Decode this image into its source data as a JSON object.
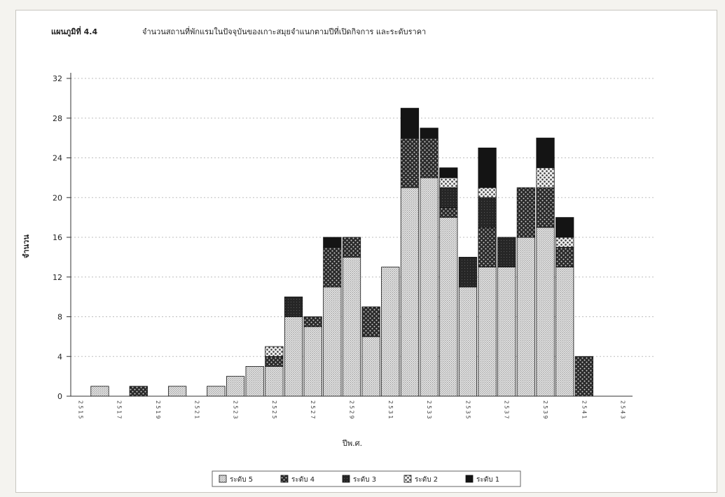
{
  "figure_label": "แผนภูมิที่ 4.4",
  "chart_data": {
    "type": "bar",
    "stacked": true,
    "title": "จำนวนสถานที่พักแรมในปัจจุบันของเกาะสมุยจำแนกตามปีที่เปิดกิจการ และระดับราคา",
    "xlabel": "ปีพ.ศ.",
    "ylabel": "จำนวน",
    "ylim": [
      0,
      32
    ],
    "yticks": [
      0,
      4,
      8,
      12,
      16,
      20,
      24,
      28,
      32
    ],
    "grid": true,
    "legend_position": "bottom",
    "categories": [
      "2515",
      "2516",
      "2517",
      "2518",
      "2519",
      "2520",
      "2521",
      "2522",
      "2523",
      "2524",
      "2525",
      "2526",
      "2527",
      "2528",
      "2529",
      "2530",
      "2531",
      "2532",
      "2533",
      "2534",
      "2535",
      "2536",
      "2537",
      "2538",
      "2539",
      "2540",
      "2541",
      "2542",
      "2543"
    ],
    "tick_labels": [
      "2515",
      "",
      "2517",
      "",
      "2519",
      "",
      "2521",
      "",
      "2523",
      "",
      "2525",
      "",
      "2527",
      "",
      "2529",
      "",
      "2531",
      "",
      "2533",
      "",
      "2535",
      "",
      "2537",
      "",
      "2539",
      "",
      "2541",
      "",
      "2543"
    ],
    "series": [
      {
        "name": "ระดับ 5",
        "color": "#d4d4d4",
        "values": [
          0,
          1,
          0,
          0,
          0,
          1,
          0,
          1,
          2,
          3,
          3,
          8,
          7,
          11,
          14,
          6,
          13,
          21,
          22,
          18,
          11,
          13,
          13,
          16,
          17,
          13,
          0,
          0,
          0
        ]
      },
      {
        "name": "ระดับ 4",
        "color": "#4a4a4a",
        "values": [
          0,
          0,
          0,
          1,
          0,
          0,
          0,
          0,
          0,
          0,
          1,
          0,
          1,
          4,
          2,
          3,
          0,
          5,
          4,
          1,
          0,
          4,
          0,
          5,
          4,
          2,
          4,
          0,
          0
        ]
      },
      {
        "name": "ระดับ 3",
        "color": "#2c2c2c",
        "values": [
          0,
          0,
          0,
          0,
          0,
          0,
          0,
          0,
          0,
          0,
          0,
          2,
          0,
          0,
          0,
          0,
          0,
          0,
          0,
          2,
          3,
          3,
          3,
          0,
          0,
          0,
          0,
          0,
          0
        ]
      },
      {
        "name": "ระดับ 2",
        "color": "#b8b8b8",
        "values": [
          0,
          0,
          0,
          0,
          0,
          0,
          0,
          0,
          0,
          0,
          1,
          0,
          0,
          0,
          0,
          0,
          0,
          0,
          0,
          1,
          0,
          1,
          0,
          0,
          2,
          1,
          0,
          0,
          0
        ]
      },
      {
        "name": "ระดับ 1",
        "color": "#161616",
        "values": [
          0,
          0,
          0,
          0,
          0,
          0,
          0,
          0,
          0,
          0,
          0,
          0,
          0,
          1,
          0,
          0,
          0,
          3,
          1,
          1,
          0,
          4,
          0,
          0,
          3,
          2,
          0,
          0,
          0
        ]
      }
    ]
  }
}
